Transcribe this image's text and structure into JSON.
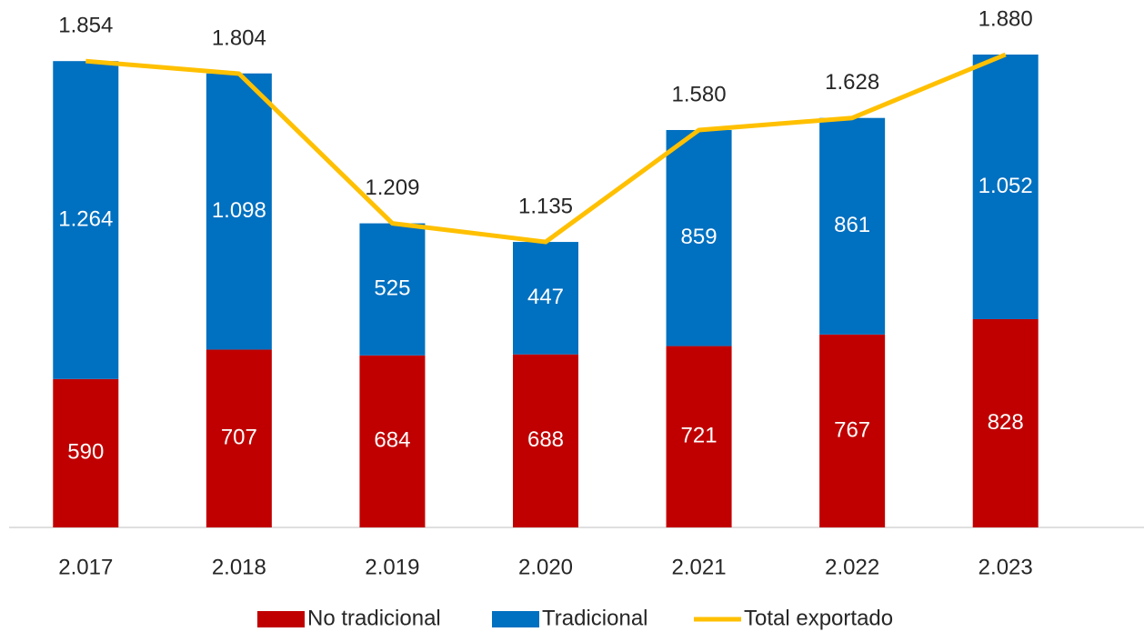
{
  "chart_data": {
    "type": "stacked-bar-line",
    "categories": [
      "2.017",
      "2.018",
      "2.019",
      "2.020",
      "2.021",
      "2.022",
      "2.023"
    ],
    "series": [
      {
        "name": "No tradicional",
        "color": "#c00000",
        "kind": "bar",
        "values": [
          590,
          707,
          684,
          688,
          721,
          767,
          828
        ],
        "value_labels": [
          "590",
          "707",
          "684",
          "688",
          "721",
          "767",
          "828"
        ]
      },
      {
        "name": "Tradicional",
        "color": "#0070c0",
        "kind": "bar",
        "values": [
          1264,
          1098,
          525,
          447,
          859,
          861,
          1052
        ],
        "value_labels": [
          "1.264",
          "1.098",
          "525",
          "447",
          "859",
          "861",
          "1.052"
        ]
      },
      {
        "name": "Total exportado",
        "color": "#ffc000",
        "kind": "line",
        "values": [
          1854,
          1804,
          1209,
          1135,
          1580,
          1628,
          1880
        ],
        "value_labels": [
          "1.854",
          "1.804",
          "1.209",
          "1.135",
          "1.580",
          "1.628",
          "1.880"
        ]
      }
    ],
    "legend": "bottom"
  }
}
